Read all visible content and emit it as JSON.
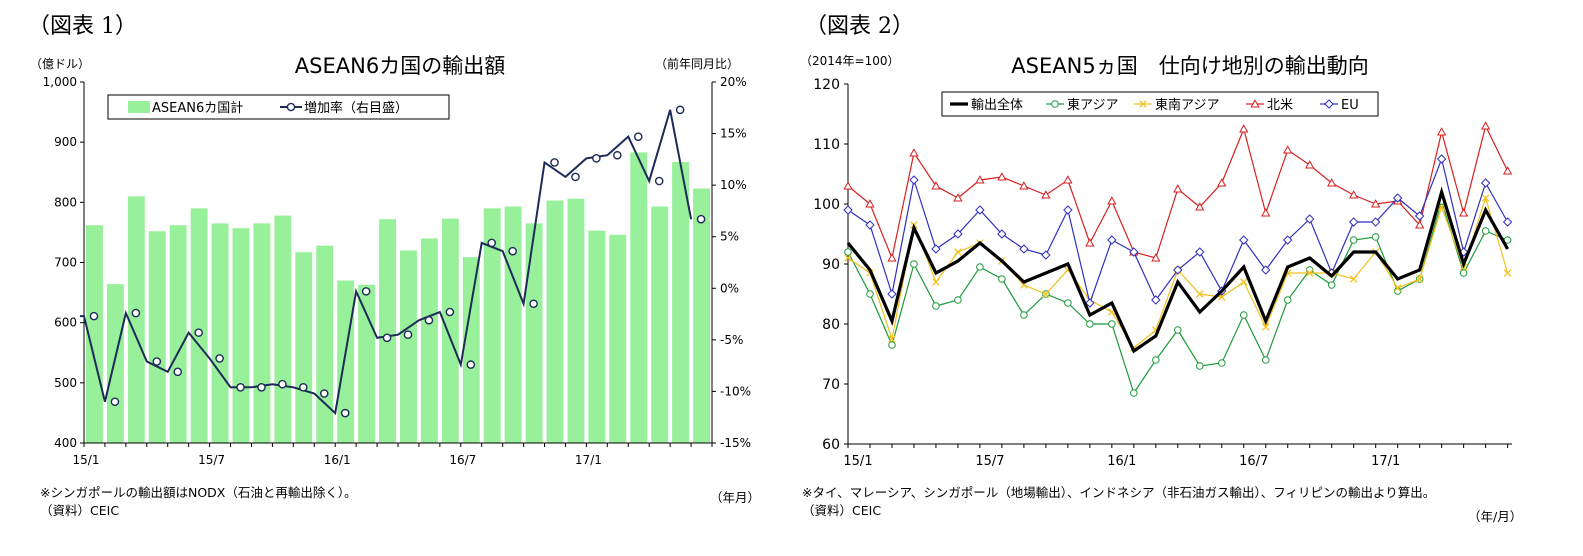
{
  "chart_data": [
    {
      "type": "bar+line",
      "panel_label": "（図表 1）",
      "title": "ASEAN6カ国の輸出額",
      "ylabel": "（億ドル）",
      "y2label": "（前年同月比）",
      "xlabel": "（年月）",
      "note": "※シンガポールの輸出額はNODX（石油と再輸出除く）。",
      "source": "（資料）CEIC",
      "ylim": [
        400,
        1000
      ],
      "y2lim": [
        -15,
        20
      ],
      "yticks": [
        "400",
        "500",
        "600",
        "700",
        "800",
        "900",
        "1,000"
      ],
      "y2ticks": [
        "-15%",
        "-10%",
        "-5%",
        "0%",
        "5%",
        "10%",
        "15%",
        "20%"
      ],
      "xticks": [
        "15/1",
        "15/7",
        "16/1",
        "16/7",
        "17/1"
      ],
      "legend_placement": "top-left",
      "bar_color": "#99f09a",
      "line_color": "#1c2b57",
      "bar_series": {
        "name": "ASEAN6カ国計",
        "values": [
          762,
          664,
          810,
          752,
          762,
          790,
          765,
          757,
          765,
          778,
          717,
          728,
          670,
          663,
          772,
          720,
          740,
          773,
          709,
          790,
          793,
          765,
          803,
          806,
          753,
          746,
          883,
          793,
          867,
          823
        ]
      },
      "line_series": {
        "name": "増加率（右目盛）",
        "values": [
          -2.7,
          -11.0,
          -2.4,
          -7.1,
          -8.1,
          -4.3,
          -6.8,
          -9.6,
          -9.6,
          -9.3,
          -9.6,
          -10.2,
          -12.1,
          -0.3,
          -4.8,
          -4.5,
          -3.1,
          -2.3,
          -7.4,
          4.4,
          3.6,
          -1.5,
          12.2,
          10.8,
          12.6,
          12.9,
          14.7,
          10.4,
          17.3,
          6.7
        ]
      }
    },
    {
      "type": "line",
      "panel_label": "（図表 2）",
      "title": "ASEAN5ヵ国　仕向け地別の輸出動向",
      "ylabel": "（2014年=100）",
      "xlabel": "（年/月）",
      "note": "※タイ、マレーシア、シンガポール（地場輸出）、インドネシア（非石油ガス輸出）、フィリピンの輸出より算出。",
      "source": "（資料）CEIC",
      "ylim": [
        60,
        120
      ],
      "yticks": [
        "60",
        "70",
        "80",
        "90",
        "100",
        "110",
        "120"
      ],
      "xticks": [
        "15/1",
        "15/7",
        "16/1",
        "16/7",
        "17/1"
      ],
      "legend_placement": "top",
      "series": [
        {
          "name": "輸出全体",
          "color": "#000000",
          "marker": "none",
          "values": [
            93.5,
            89.0,
            80.5,
            96.0,
            88.5,
            90.5,
            93.5,
            90.5,
            87.0,
            88.5,
            90.0,
            81.5,
            83.5,
            75.5,
            78.0,
            87.0,
            82.0,
            85.5,
            89.5,
            80.5,
            89.5,
            91.0,
            88.0,
            92.0,
            92.0,
            87.5,
            89.0,
            102.0,
            90.0,
            99.0,
            92.5
          ]
        },
        {
          "name": "東アジア",
          "color": "#1e9a3a",
          "marker": "circle",
          "values": [
            92.0,
            85.0,
            76.5,
            90.0,
            83.0,
            84.0,
            89.5,
            87.5,
            81.5,
            85.0,
            83.5,
            80.0,
            80.0,
            68.5,
            74.0,
            79.0,
            73.0,
            73.5,
            81.5,
            74.0,
            84.0,
            89.0,
            86.5,
            94.0,
            94.5,
            85.5,
            87.5,
            100.5,
            88.5,
            95.5,
            94.0
          ]
        },
        {
          "name": "東南アジア",
          "color": "#f0c020",
          "marker": "x",
          "values": [
            91.0,
            88.5,
            77.5,
            96.5,
            87.0,
            92.0,
            93.5,
            90.5,
            86.5,
            85.0,
            89.0,
            84.0,
            82.0,
            76.0,
            79.0,
            89.0,
            85.0,
            84.5,
            87.0,
            79.5,
            88.5,
            88.5,
            88.5,
            87.5,
            92.0,
            86.0,
            87.5,
            99.5,
            89.5,
            101.0,
            88.5
          ]
        },
        {
          "name": "北米",
          "color": "#d62020",
          "marker": "triangle",
          "values": [
            103.0,
            100.0,
            91.0,
            108.5,
            103.0,
            101.0,
            104.0,
            104.5,
            103.0,
            101.5,
            104.0,
            93.5,
            100.5,
            92.0,
            91.0,
            102.5,
            99.5,
            103.5,
            112.5,
            98.5,
            109.0,
            106.5,
            103.5,
            101.5,
            100.0,
            100.5,
            96.5,
            112.0,
            98.5,
            113.0,
            105.5
          ]
        },
        {
          "name": "EU",
          "color": "#3030c0",
          "marker": "diamond",
          "values": [
            99.0,
            96.5,
            85.0,
            104.0,
            92.5,
            95.0,
            99.0,
            95.0,
            92.5,
            91.5,
            99.0,
            83.5,
            94.0,
            92.0,
            84.0,
            89.0,
            92.0,
            85.5,
            94.0,
            89.0,
            94.0,
            97.5,
            88.5,
            97.0,
            97.0,
            101.0,
            98.0,
            107.5,
            92.0,
            103.5,
            97.0
          ]
        }
      ]
    }
  ]
}
